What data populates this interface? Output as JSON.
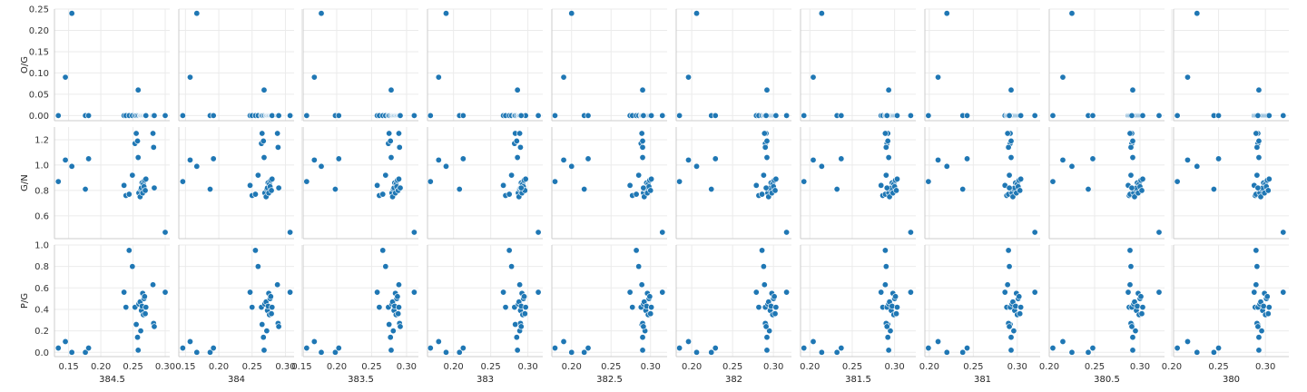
{
  "chart_data": {
    "type": "scatter",
    "layout": "grid 3 rows x 10 columns, shared y per row",
    "grid": true,
    "color": "#1f77b4",
    "x_columns": [
      "384.5",
      "384",
      "383.5",
      "383",
      "382.5",
      "382",
      "381.5",
      "381",
      "380.5",
      "380"
    ],
    "x_tick_labels": [
      [
        "0.15",
        "0.20",
        "0.25",
        "0.30"
      ],
      [
        "0.15",
        "0.20",
        "0.25",
        "0.30"
      ],
      [
        "0.15",
        "0.20",
        "0.25",
        "0.30"
      ],
      [
        "0.20",
        "0.25",
        "0.30"
      ],
      [
        "0.20",
        "0.25",
        "0.30"
      ],
      [
        "0.20",
        "0.25",
        "0.30"
      ],
      [
        "0.20",
        "0.25",
        "0.30"
      ],
      [
        "0.20",
        "0.25",
        "0.30"
      ],
      [
        "0.20",
        "0.25",
        "0.30"
      ],
      [
        "0.20",
        "0.25",
        "0.30"
      ]
    ],
    "x_ranges": [
      [
        0.128,
        0.307
      ],
      [
        0.14,
        0.313
      ],
      [
        0.152,
        0.317
      ],
      [
        0.165,
        0.32
      ],
      [
        0.175,
        0.321
      ],
      [
        0.181,
        0.322
      ],
      [
        0.189,
        0.325
      ],
      [
        0.195,
        0.326
      ],
      [
        0.2,
        0.327
      ],
      [
        0.202,
        0.325
      ]
    ],
    "rows": [
      {
        "ylabel": "O/G",
        "ylim": [
          -0.012,
          0.25
        ],
        "yticks": [
          0.0,
          0.05,
          0.1,
          0.15,
          0.2,
          0.25
        ],
        "ytick_labels": [
          "0.00",
          "0.05",
          "0.10",
          "0.15",
          "0.20",
          "0.25"
        ]
      },
      {
        "ylabel": "G/N",
        "ylim": [
          0.42,
          1.3
        ],
        "yticks": [
          0.6,
          0.8,
          1.0,
          1.2
        ],
        "ytick_labels": [
          "0.6",
          "0.8",
          "1.0",
          "1.2"
        ]
      },
      {
        "ylabel": "P/G",
        "ylim": [
          -0.04,
          1.0
        ],
        "yticks": [
          0.0,
          0.2,
          0.4,
          0.6,
          0.8,
          1.0
        ],
        "ytick_labels": [
          "0.0",
          "0.2",
          "0.4",
          "0.6",
          "0.8",
          "1.0"
        ]
      }
    ],
    "points": {
      "O/G": [
        0.0,
        0.09,
        0.24,
        0.0,
        0.0,
        0.0,
        0.0,
        0.0,
        0.0,
        0.0,
        0.0,
        0.0,
        0.06,
        0.0,
        0.0,
        0.0,
        0.0,
        0.0,
        0.0,
        0.0,
        0.0,
        0.0,
        0.0,
        0.0,
        0.0,
        0.0,
        0.0,
        0.0
      ],
      "G/N": [
        0.87,
        1.04,
        0.99,
        0.81,
        1.05,
        0.84,
        0.76,
        0.77,
        0.92,
        1.17,
        1.25,
        1.19,
        1.06,
        0.78,
        0.75,
        0.81,
        0.82,
        0.86,
        0.78,
        0.85,
        0.83,
        0.88,
        0.8,
        0.89,
        1.25,
        1.14,
        0.82,
        0.47
      ],
      "P/G": [
        0.04,
        0.1,
        0.0,
        0.0,
        0.04,
        0.56,
        0.42,
        0.95,
        0.8,
        0.42,
        0.26,
        0.14,
        0.02,
        0.45,
        0.47,
        0.2,
        0.39,
        0.43,
        0.55,
        0.35,
        0.5,
        0.52,
        0.36,
        0.42,
        0.63,
        0.27,
        0.24,
        0.56
      ]
    },
    "x_by_column": [
      [
        0.134,
        0.145,
        0.155,
        0.176,
        0.181,
        0.236,
        0.239,
        0.244,
        0.249,
        0.253,
        0.255,
        0.257,
        0.258,
        0.259,
        0.261,
        0.262,
        0.263,
        0.264,
        0.265,
        0.266,
        0.267,
        0.268,
        0.269,
        0.27,
        0.281,
        0.282,
        0.283,
        0.3
      ],
      [
        0.146,
        0.157,
        0.167,
        0.187,
        0.192,
        0.247,
        0.25,
        0.255,
        0.259,
        0.264,
        0.265,
        0.267,
        0.268,
        0.269,
        0.271,
        0.272,
        0.273,
        0.274,
        0.275,
        0.276,
        0.277,
        0.278,
        0.279,
        0.28,
        0.288,
        0.289,
        0.29,
        0.307
      ],
      [
        0.157,
        0.168,
        0.178,
        0.198,
        0.203,
        0.258,
        0.261,
        0.266,
        0.27,
        0.274,
        0.275,
        0.277,
        0.278,
        0.279,
        0.28,
        0.281,
        0.282,
        0.283,
        0.284,
        0.285,
        0.286,
        0.287,
        0.288,
        0.289,
        0.289,
        0.29,
        0.291,
        0.311
      ],
      [
        0.169,
        0.18,
        0.19,
        0.208,
        0.213,
        0.267,
        0.27,
        0.275,
        0.278,
        0.282,
        0.283,
        0.285,
        0.286,
        0.287,
        0.288,
        0.289,
        0.29,
        0.291,
        0.292,
        0.293,
        0.294,
        0.295,
        0.296,
        0.297,
        0.289,
        0.29,
        0.291,
        0.314
      ],
      [
        0.179,
        0.19,
        0.2,
        0.216,
        0.221,
        0.274,
        0.277,
        0.282,
        0.285,
        0.288,
        0.289,
        0.29,
        0.29,
        0.291,
        0.292,
        0.293,
        0.294,
        0.295,
        0.296,
        0.297,
        0.298,
        0.299,
        0.3,
        0.301,
        0.289,
        0.29,
        0.291,
        0.315
      ],
      [
        0.185,
        0.196,
        0.206,
        0.224,
        0.229,
        0.279,
        0.282,
        0.286,
        0.288,
        0.29,
        0.291,
        0.292,
        0.292,
        0.293,
        0.294,
        0.295,
        0.296,
        0.297,
        0.298,
        0.299,
        0.3,
        0.301,
        0.302,
        0.303,
        0.289,
        0.29,
        0.291,
        0.316
      ],
      [
        0.193,
        0.204,
        0.214,
        0.232,
        0.237,
        0.284,
        0.286,
        0.289,
        0.29,
        0.291,
        0.292,
        0.292,
        0.293,
        0.293,
        0.294,
        0.295,
        0.296,
        0.297,
        0.298,
        0.299,
        0.3,
        0.301,
        0.302,
        0.303,
        0.289,
        0.29,
        0.291,
        0.319
      ],
      [
        0.199,
        0.21,
        0.22,
        0.238,
        0.243,
        0.286,
        0.288,
        0.29,
        0.291,
        0.292,
        0.292,
        0.293,
        0.293,
        0.294,
        0.295,
        0.296,
        0.297,
        0.298,
        0.299,
        0.3,
        0.301,
        0.302,
        0.303,
        0.304,
        0.289,
        0.29,
        0.291,
        0.32
      ],
      [
        0.204,
        0.215,
        0.225,
        0.243,
        0.248,
        0.287,
        0.288,
        0.289,
        0.29,
        0.291,
        0.291,
        0.292,
        0.292,
        0.293,
        0.294,
        0.295,
        0.296,
        0.297,
        0.298,
        0.299,
        0.3,
        0.301,
        0.302,
        0.303,
        0.289,
        0.29,
        0.291,
        0.321
      ],
      [
        0.206,
        0.217,
        0.227,
        0.245,
        0.25,
        0.288,
        0.289,
        0.29,
        0.291,
        0.292,
        0.292,
        0.293,
        0.293,
        0.294,
        0.295,
        0.296,
        0.297,
        0.298,
        0.299,
        0.3,
        0.301,
        0.302,
        0.303,
        0.304,
        0.29,
        0.291,
        0.292,
        0.319
      ]
    ]
  }
}
